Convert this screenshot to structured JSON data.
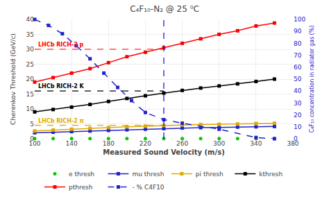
{
  "chart_data": {
    "type": "line",
    "title": "C₄F₁₀-N₂ @ 25 ⁰C",
    "x_label": "Measured Sound Velocity (m/s)",
    "y_label": "Cherenkov Threshold (GeV/c)",
    "y2_label": "C₄F₁₀ concentration in radiator gas (%)",
    "xlim": [
      100,
      380
    ],
    "ylim": [
      0,
      40
    ],
    "y2lim": [
      0,
      100
    ],
    "xticks": [
      100,
      140,
      180,
      220,
      260,
      300,
      340,
      380
    ],
    "yticks": [
      0,
      5,
      10,
      15,
      20,
      25,
      30,
      35,
      40
    ],
    "y2ticks": [
      0,
      10,
      20,
      30,
      40,
      50,
      60,
      70,
      80,
      90,
      100
    ],
    "grid": true,
    "legend": "bottom",
    "series": [
      {
        "name": "e thresh",
        "color": "#00cc00",
        "marker": "circle",
        "line_style": "none",
        "x": [
          100,
          120,
          140,
          160,
          180,
          200,
          220,
          240,
          260,
          280,
          300,
          320,
          340,
          360
        ],
        "values": [
          0.05,
          0.05,
          0.05,
          0.05,
          0.05,
          0.05,
          0.05,
          0.05,
          0.05,
          0.05,
          0.05,
          0.05,
          0.05,
          0.05
        ]
      },
      {
        "name": "mu thresh",
        "color": "#2222cc",
        "marker": "square",
        "line_style": "solid",
        "x": [
          100,
          120,
          140,
          160,
          180,
          200,
          220,
          240,
          260,
          280,
          300,
          320,
          340,
          360
        ],
        "values": [
          2.0,
          2.2,
          2.4,
          2.6,
          2.8,
          3.0,
          3.2,
          3.4,
          3.6,
          3.7,
          3.8,
          3.9,
          4.0,
          4.1
        ]
      },
      {
        "name": "pi thresh",
        "color": "#ddaa00",
        "marker": "square",
        "line_style": "solid",
        "x": [
          100,
          120,
          140,
          160,
          180,
          200,
          220,
          240,
          260,
          280,
          300,
          320,
          340,
          360
        ],
        "values": [
          2.6,
          2.9,
          3.2,
          3.5,
          3.75,
          4.0,
          4.2,
          4.45,
          4.6,
          4.75,
          4.85,
          4.95,
          5.1,
          5.2
        ]
      },
      {
        "name": "kthresh",
        "color": "black",
        "marker": "square",
        "line_style": "solid",
        "x": [
          100,
          120,
          140,
          160,
          180,
          200,
          220,
          240,
          260,
          280,
          300,
          320,
          340,
          360
        ],
        "values": [
          9.0,
          9.8,
          10.6,
          11.5,
          12.5,
          13.5,
          14.4,
          15.3,
          16.2,
          17.0,
          17.7,
          18.4,
          19.2,
          20.0
        ]
      },
      {
        "name": "pthresh",
        "color": "red",
        "marker": "square",
        "line_style": "solid",
        "x": [
          100,
          120,
          140,
          160,
          180,
          200,
          220,
          240,
          260,
          280,
          300,
          320,
          340,
          360
        ],
        "values": [
          19.0,
          20.5,
          22.0,
          23.5,
          25.5,
          27.5,
          29.0,
          30.5,
          32.0,
          33.5,
          35.0,
          36.2,
          37.8,
          38.8
        ]
      },
      {
        "name": "- % C4F10",
        "color": "#2222cc",
        "marker": "square",
        "line_style": "dash",
        "axis": "y2",
        "x": [
          100,
          115,
          130,
          145,
          160,
          175,
          190,
          205,
          220,
          240,
          260,
          300,
          340,
          360
        ],
        "values": [
          100,
          95,
          88,
          78,
          67,
          55,
          43,
          32,
          22,
          16,
          13,
          8,
          1,
          0
        ]
      }
    ],
    "hlines": [
      {
        "value": 30,
        "x_end": 240,
        "color": "red",
        "label": "LHCb RICH-2 p"
      },
      {
        "value": 16,
        "x_end": 240,
        "color": "black",
        "label": "LHCb RICH-2 K"
      },
      {
        "value": 4.5,
        "x_end": 240,
        "color": "#ddaa00",
        "label": "LHCb RICH-2 π"
      }
    ],
    "vlines": [
      {
        "value": 240,
        "color": "blue"
      }
    ]
  }
}
